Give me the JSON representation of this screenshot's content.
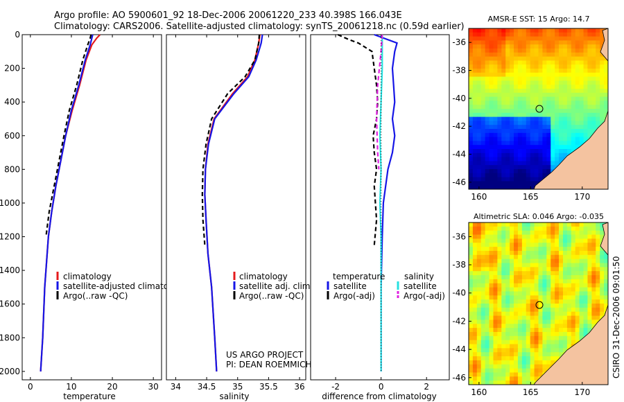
{
  "header": {
    "line1": "Argo profile: AO 5900601_92 18-Dec-2006 20061220_233 40.398S 166.043E",
    "line2": "Climatology: CARS2006. Satellite-adjusted climatology: synTS_20061218.nc (0.59d earlier)"
  },
  "credit": {
    "project": "US ARGO PROJECT",
    "pi": "PI: DEAN ROEMMICH",
    "stamp": "CSIRO 31-Dec-2006 09:01:50"
  },
  "colors": {
    "climatology": "#e41a1c",
    "satellite": "#1515e6",
    "argo": "#000000",
    "sal_satellite": "#26e0e0",
    "sal_argo": "#e020e0",
    "land": "#f4c3a0"
  },
  "chart_data": [
    {
      "type": "line",
      "xlabel": "temperature",
      "ylabel": "",
      "xlim": [
        -2,
        32
      ],
      "ylim": [
        2050,
        0
      ],
      "xticks": [
        0,
        10,
        20,
        30
      ],
      "yticks": [
        0,
        200,
        400,
        600,
        800,
        1000,
        1200,
        1400,
        1600,
        1800,
        2000
      ],
      "legend": [
        "climatology",
        "satellite-adjusted climatology",
        "Argo(..raw -QC)"
      ],
      "legend_placement": "lower-right",
      "series": [
        {
          "name": "climatology",
          "style": "solid",
          "color": "#e41a1c",
          "x": [
            17.0,
            16.2,
            15.0,
            13.6,
            12.0,
            10.2,
            8.6,
            7.4,
            6.2,
            5.2,
            4.4,
            3.5,
            3.0,
            2.5
          ],
          "y": [
            0,
            20,
            60,
            150,
            300,
            450,
            600,
            750,
            900,
            1050,
            1200,
            1500,
            1800,
            2000
          ]
        },
        {
          "name": "satellite-adjusted climatology",
          "style": "solid",
          "color": "#1515e6",
          "x": [
            15.2,
            15.0,
            14.6,
            13.4,
            11.8,
            10.0,
            8.6,
            7.4,
            6.2,
            5.2,
            4.4,
            3.5,
            3.0,
            2.5
          ],
          "y": [
            0,
            20,
            60,
            150,
            300,
            450,
            600,
            750,
            900,
            1050,
            1200,
            1500,
            1800,
            2000
          ]
        },
        {
          "name": "Argo(..raw -QC)",
          "style": "dashed",
          "color": "#000000",
          "x": [
            14.8,
            14.6,
            14.0,
            12.8,
            11.3,
            9.5,
            8.2,
            7.0,
            5.8,
            4.6,
            3.8
          ],
          "y": [
            0,
            20,
            60,
            150,
            300,
            450,
            600,
            750,
            900,
            1050,
            1200
          ]
        }
      ]
    },
    {
      "type": "line",
      "xlabel": "salinity",
      "ylabel": "",
      "xlim": [
        33.85,
        36.1
      ],
      "ylim": [
        2050,
        0
      ],
      "xticks": [
        34,
        34.5,
        35,
        35.5,
        36
      ],
      "legend": [
        "climatology",
        "satellite adj. clim.",
        "Argo(..raw -QC)"
      ],
      "legend_placement": "lower-right",
      "series": [
        {
          "name": "climatology",
          "style": "solid",
          "color": "#e41a1c",
          "x": [
            35.36,
            35.34,
            35.28,
            35.16,
            34.92,
            34.62,
            34.52,
            34.48,
            34.47,
            34.49,
            34.52,
            34.58,
            34.63,
            34.66
          ],
          "y": [
            0,
            50,
            150,
            250,
            350,
            500,
            650,
            800,
            950,
            1100,
            1300,
            1500,
            1800,
            2000
          ]
        },
        {
          "name": "satellite adj. clim.",
          "style": "solid",
          "color": "#1515e6",
          "x": [
            35.4,
            35.38,
            35.3,
            35.18,
            34.94,
            34.63,
            34.53,
            34.48,
            34.47,
            34.49,
            34.52,
            34.58,
            34.63,
            34.66
          ],
          "y": [
            0,
            50,
            150,
            250,
            350,
            500,
            650,
            800,
            950,
            1100,
            1300,
            1500,
            1800,
            2000
          ]
        },
        {
          "name": "Argo(..raw -QC)",
          "style": "dashed",
          "color": "#000000",
          "x": [
            35.35,
            35.34,
            35.28,
            35.12,
            34.84,
            34.58,
            34.49,
            34.44,
            34.43,
            34.44,
            34.47
          ],
          "y": [
            0,
            50,
            150,
            250,
            350,
            500,
            650,
            800,
            950,
            1100,
            1250
          ]
        }
      ]
    },
    {
      "type": "line",
      "xlabel": "difference from climatology",
      "ylabel": "",
      "xlim": [
        -3.1,
        3.0
      ],
      "ylim": [
        2050,
        0
      ],
      "xticks": [
        -2,
        0,
        2
      ],
      "legend": [
        "temperature",
        "satellite",
        "Argo(-adj)",
        "salinity",
        "satellite",
        "Argo(-adj)"
      ],
      "legend_placement": "lower-center",
      "series": [
        {
          "name": "satellite",
          "group": "temperature",
          "style": "solid",
          "color": "#1515e6",
          "x": [
            -0.3,
            0.7,
            0.6,
            0.5,
            0.55,
            0.6,
            0.5,
            0.6,
            0.5,
            0.3,
            0.1,
            0.05,
            0.0,
            0.0
          ],
          "y": [
            0,
            50,
            100,
            200,
            300,
            400,
            500,
            600,
            700,
            800,
            1000,
            1200,
            1500,
            2000
          ]
        },
        {
          "name": "Argo(-adj)",
          "group": "temperature",
          "style": "dashed",
          "color": "#000000",
          "x": [
            -1.9,
            -1.4,
            -1.0,
            -0.4,
            -0.3,
            -0.2,
            -0.15,
            -0.2,
            -0.35,
            -0.3,
            -0.2,
            -0.3,
            -0.2,
            -0.3
          ],
          "y": [
            0,
            30,
            50,
            100,
            200,
            300,
            400,
            500,
            600,
            700,
            800,
            900,
            1100,
            1250
          ]
        },
        {
          "name": "satellite",
          "group": "salinity",
          "style": "solid",
          "color": "#26e0e0",
          "x": [
            0.05,
            0.05,
            0.0,
            -0.05,
            0.0,
            -0.05,
            0.0,
            0.0,
            0.0,
            0.0
          ],
          "y": [
            0,
            200,
            400,
            600,
            800,
            1000,
            1200,
            1500,
            1800,
            2000
          ]
        },
        {
          "name": "Argo(-adj)",
          "group": "salinity",
          "style": "dashed",
          "color": "#e020e0",
          "x": [
            0.05,
            0.0,
            -0.15,
            -0.2,
            -0.15,
            -0.1
          ],
          "y": [
            0,
            100,
            300,
            500,
            700,
            800
          ]
        },
        {
          "name": "zero",
          "style": "dotted",
          "color": "#000000",
          "x": [
            0,
            0
          ],
          "y": [
            0,
            2000
          ]
        }
      ]
    },
    {
      "type": "heatmap",
      "title": "AMSR-E SST: 15 Argo: 14.7",
      "xlim": [
        159,
        172.5
      ],
      "ylim": [
        -46.5,
        -35
      ],
      "xticks": [
        160,
        165,
        170
      ],
      "yticks": [
        -36,
        -38,
        -40,
        -42,
        -44,
        -46
      ],
      "marker": {
        "lon": 166.043,
        "lat": -40.398
      },
      "colormap": "jet"
    },
    {
      "type": "heatmap",
      "title": "Altimetric SLA: 0.046 Argo: -0.035",
      "xlim": [
        159,
        172.5
      ],
      "ylim": [
        -46.5,
        -35
      ],
      "xticks": [
        160,
        165,
        170
      ],
      "yticks": [
        -36,
        -38,
        -40,
        -42,
        -44,
        -46
      ],
      "marker": {
        "lon": 166.043,
        "lat": -40.398
      },
      "colormap": "jet"
    }
  ]
}
